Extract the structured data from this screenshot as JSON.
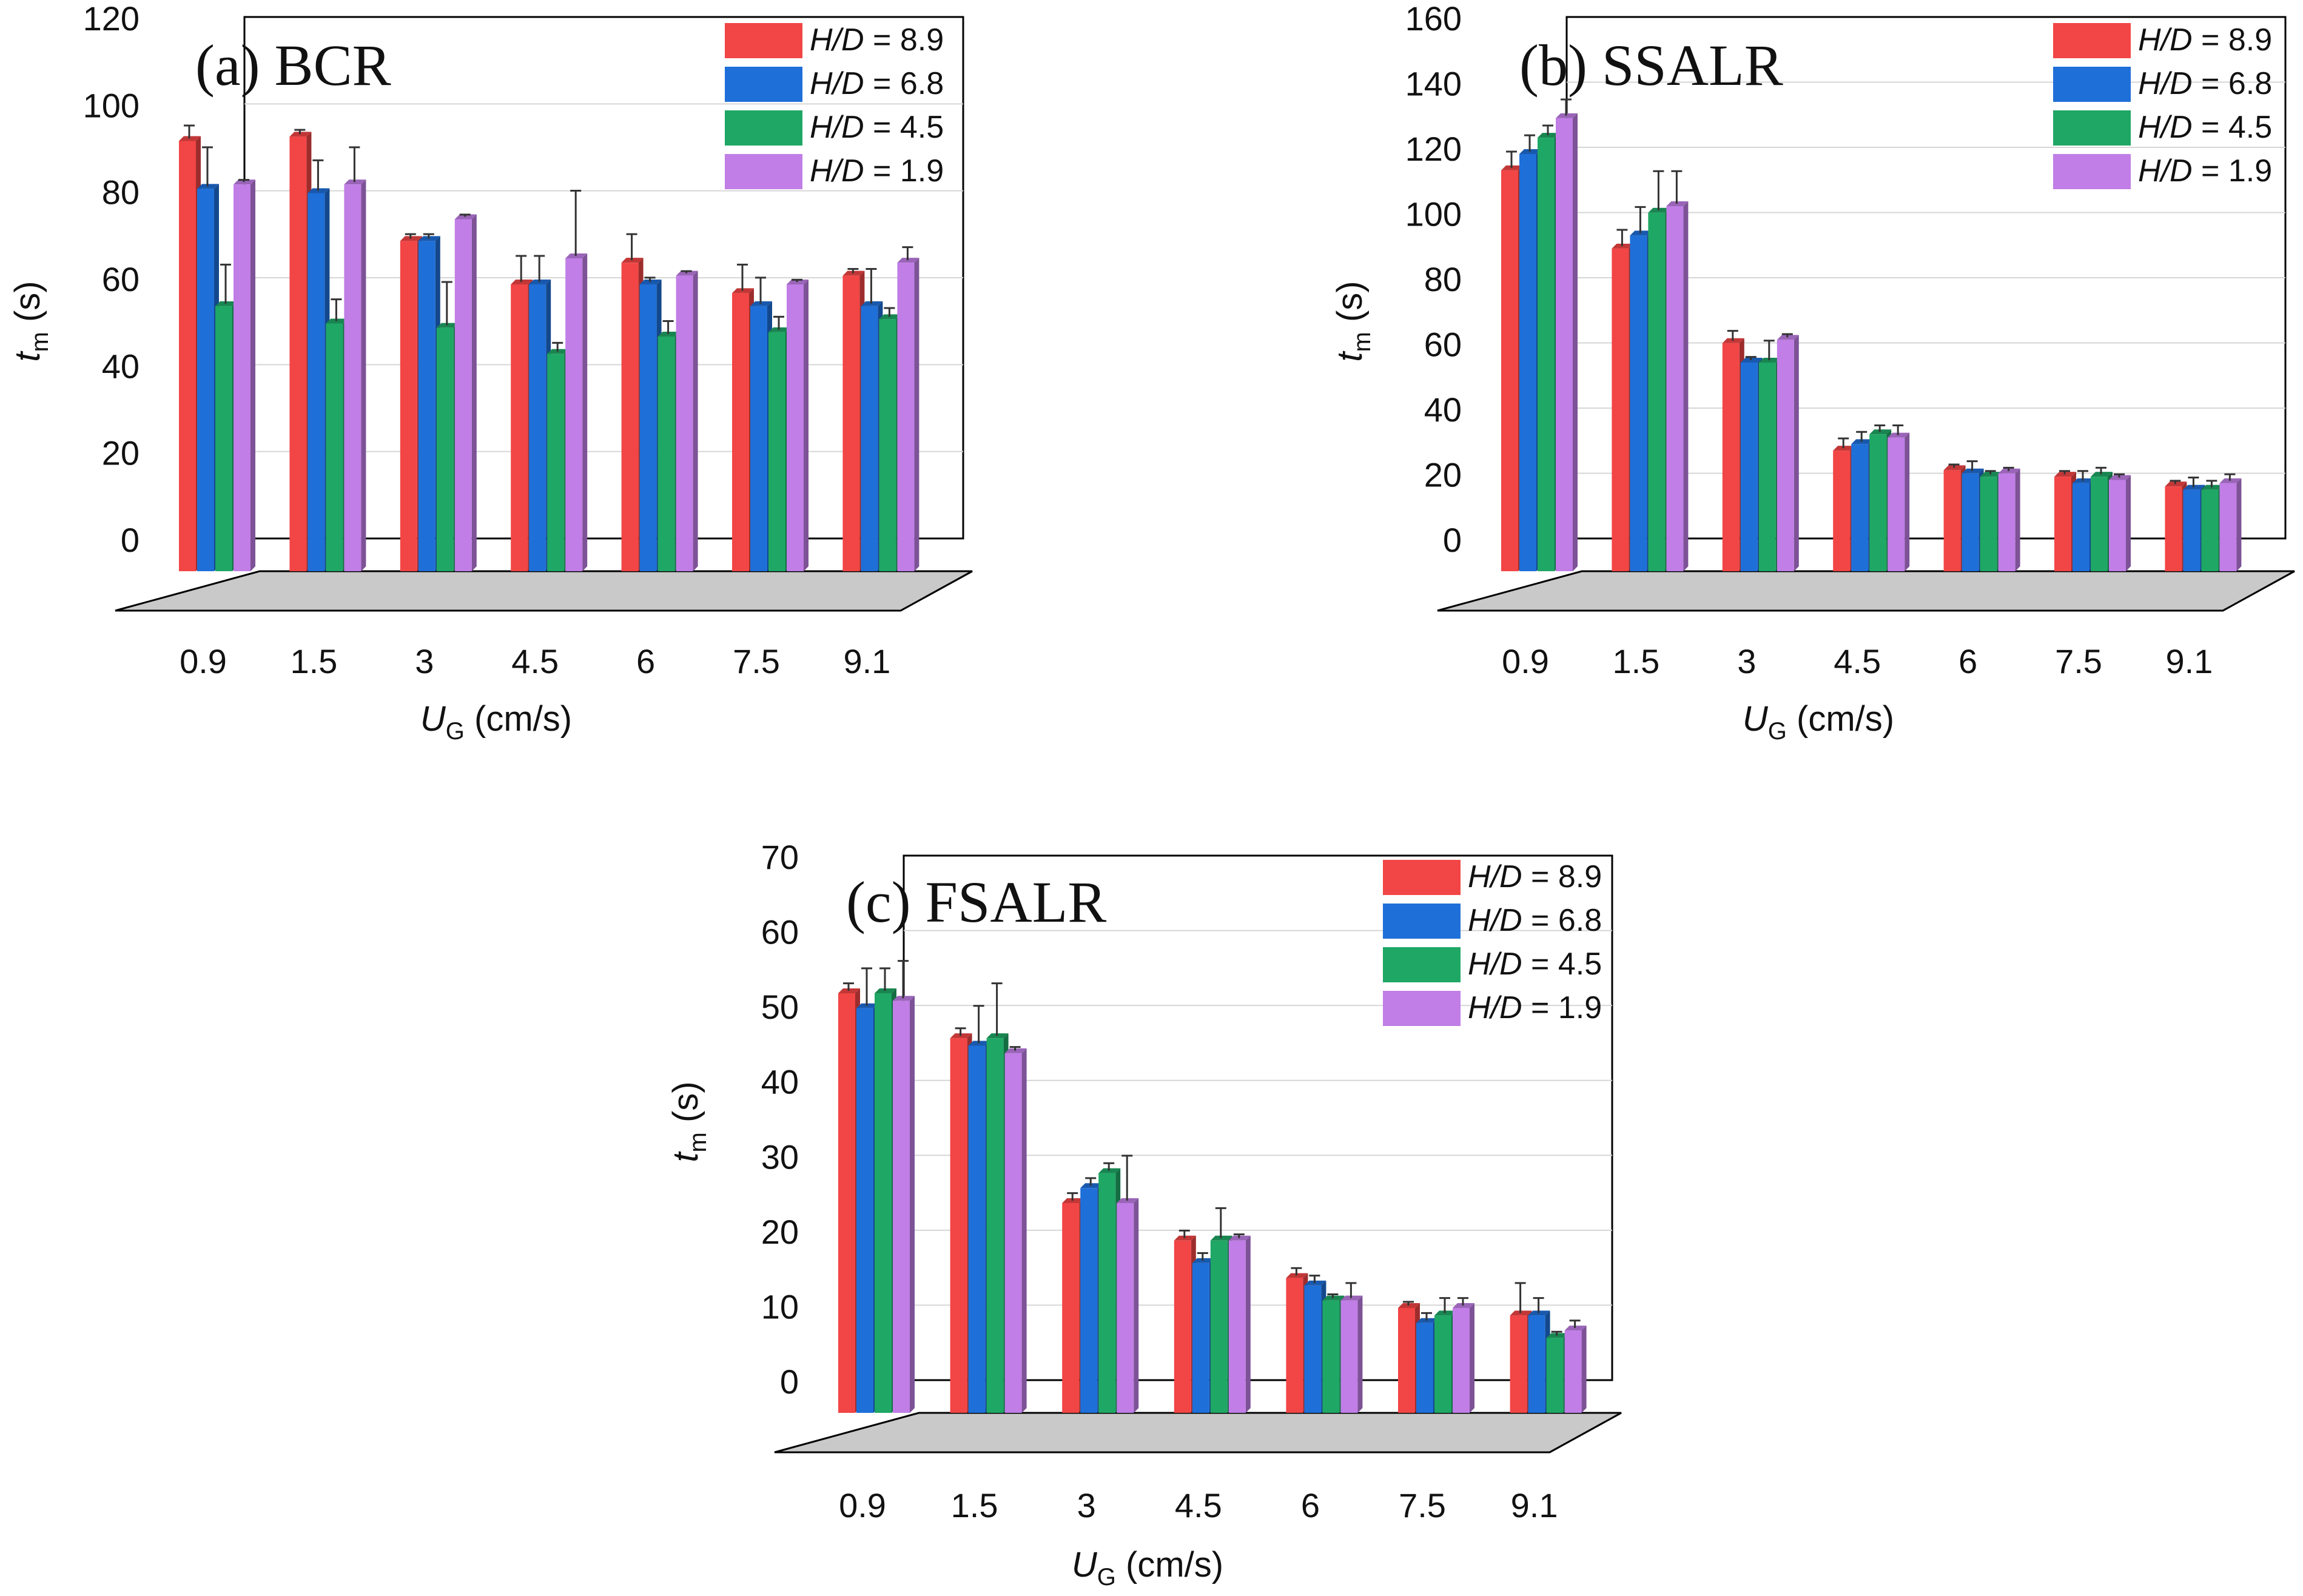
{
  "figure": {
    "x_axis_symbol": "U",
    "x_axis_subscript": "G",
    "x_axis_unit": "(cm/s)",
    "y_axis_symbol": "t",
    "y_axis_subscript": "m",
    "y_axis_unit": "(s)",
    "legend_prefix": "H/D",
    "colors": {
      "H/D = 8.9": "#f24545",
      "H/D = 6.8": "#1f6fd8",
      "H/D = 4.5": "#1fa765",
      "H/D = 1.9": "#c07ee6"
    }
  },
  "chart_data": [
    {
      "type": "bar",
      "title": "(a) BCR",
      "xlabel": "UG (cm/s)",
      "ylabel": "tm (s)",
      "ylim": [
        0,
        120
      ],
      "yticks": [
        0,
        20,
        40,
        60,
        80,
        100,
        120
      ],
      "categories": [
        "0.9",
        "1.5",
        "3",
        "4.5",
        "6",
        "7.5",
        "9.1"
      ],
      "legend_position": "top-right",
      "series": [
        {
          "name": "H/D = 8.9",
          "values": [
            99,
            100,
            76,
            66,
            71,
            64,
            68
          ],
          "errors": [
            3,
            1,
            1,
            6,
            6,
            6,
            1
          ]
        },
        {
          "name": "H/D = 6.8",
          "values": [
            88,
            87,
            76,
            66,
            66,
            61,
            61
          ],
          "errors": [
            9,
            7,
            1,
            6,
            1,
            6,
            8
          ]
        },
        {
          "name": "H/D = 4.5",
          "values": [
            61,
            57,
            56,
            50,
            54,
            55,
            58
          ],
          "errors": [
            9,
            5,
            10,
            2,
            3,
            3,
            2
          ]
        },
        {
          "name": "H/D = 1.9",
          "values": [
            89,
            89,
            81,
            72,
            68,
            66,
            71
          ],
          "errors": [
            0.5,
            8,
            0.5,
            15,
            0.5,
            0.5,
            3
          ]
        }
      ]
    },
    {
      "type": "bar",
      "title": "(b) SSALR",
      "xlabel": "UG (cm/s)",
      "ylabel": "tm (s)",
      "ylim": [
        0,
        160
      ],
      "yticks": [
        0,
        20,
        40,
        60,
        80,
        100,
        120,
        140,
        160
      ],
      "categories": [
        "0.9",
        "1.5",
        "3",
        "4.5",
        "6",
        "7.5",
        "9.1"
      ],
      "legend_position": "top-right",
      "series": [
        {
          "name": "H/D = 8.9",
          "values": [
            123,
            99,
            70,
            37,
            31,
            29,
            26
          ],
          "errors": [
            5,
            5,
            3,
            3,
            1,
            1,
            1
          ]
        },
        {
          "name": "H/D = 6.8",
          "values": [
            128,
            103,
            64,
            39,
            30,
            27,
            25
          ],
          "errors": [
            5,
            8,
            1,
            3,
            3,
            3,
            3
          ]
        },
        {
          "name": "H/D = 4.5",
          "values": [
            133,
            110,
            64,
            42,
            29,
            29,
            25
          ],
          "errors": [
            3,
            12,
            6,
            2,
            1,
            2,
            2
          ]
        },
        {
          "name": "H/D = 1.9",
          "values": [
            139,
            112,
            71,
            41,
            30,
            28,
            27
          ],
          "errors": [
            5,
            10,
            1,
            3,
            1,
            1,
            2
          ]
        }
      ]
    },
    {
      "type": "bar",
      "title": "(c) FSALR",
      "xlabel": "UG (cm/s)",
      "ylabel": "tm (s)",
      "ylim": [
        0,
        70
      ],
      "yticks": [
        0,
        10,
        20,
        30,
        40,
        50,
        60,
        70
      ],
      "categories": [
        "0.9",
        "1.5",
        "3",
        "4.5",
        "6",
        "7.5",
        "9.1"
      ],
      "legend_position": "top-right",
      "series": [
        {
          "name": "H/D = 8.9",
          "values": [
            56,
            50,
            28,
            23,
            18,
            14,
            13
          ],
          "errors": [
            1,
            1,
            1,
            1,
            1,
            0.5,
            4
          ]
        },
        {
          "name": "H/D = 6.8",
          "values": [
            54,
            49,
            30,
            20,
            17,
            12,
            13
          ],
          "errors": [
            5,
            5,
            1,
            1,
            1,
            1,
            2
          ]
        },
        {
          "name": "H/D = 4.5",
          "values": [
            56,
            50,
            32,
            23,
            15,
            13,
            10
          ],
          "errors": [
            3,
            7,
            1,
            4,
            0.5,
            2,
            0.5
          ]
        },
        {
          "name": "H/D = 1.9",
          "values": [
            55,
            48,
            28,
            23,
            15,
            14,
            11
          ],
          "errors": [
            5,
            0.5,
            6,
            0.5,
            2,
            1,
            1
          ]
        }
      ]
    }
  ]
}
